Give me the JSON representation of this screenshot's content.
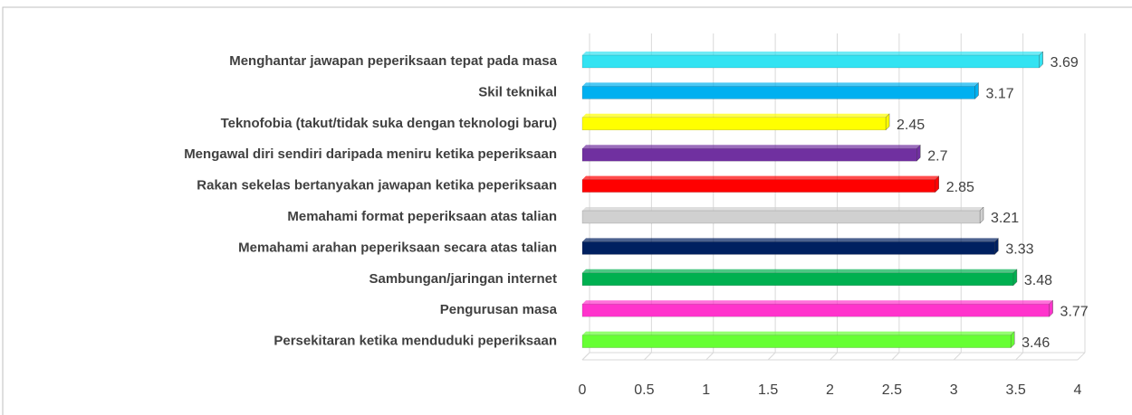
{
  "chart_data": {
    "type": "bar",
    "orientation": "horizontal",
    "categories": [
      "Menghantar jawapan peperiksaan tepat pada masa",
      "Skil teknikal",
      "Teknofobia (takut/tidak suka dengan teknologi baru)",
      "Mengawal diri sendiri daripada meniru ketika peperiksaan",
      "Rakan sekelas bertanyakan jawapan ketika peperiksaan",
      "Memahami format peperiksaan atas talian",
      "Memahami arahan peperiksaan secara atas talian",
      "Sambungan/jaringan internet",
      "Pengurusan masa",
      "Persekitaran ketika menduduki peperiksaan"
    ],
    "values": [
      3.69,
      3.17,
      2.45,
      2.7,
      2.85,
      3.21,
      3.33,
      3.48,
      3.77,
      3.46
    ],
    "colors": [
      "#33e3f2",
      "#00b0f0",
      "#ffff00",
      "#7030a0",
      "#ff0000",
      "#d0d0d0",
      "#002060",
      "#00b050",
      "#ff33cc",
      "#66ff33"
    ],
    "xlim": [
      0,
      4
    ],
    "xticks": [
      0,
      0.5,
      1,
      1.5,
      2,
      2.5,
      3,
      3.5,
      4
    ],
    "grid": true
  }
}
